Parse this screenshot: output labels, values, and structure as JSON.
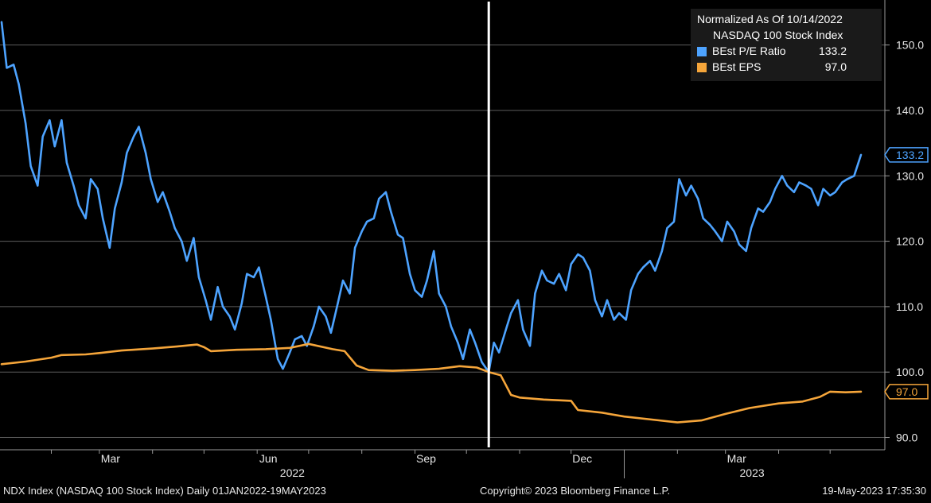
{
  "legend": {
    "header1": "Normalized As Of 10/14/2022",
    "header2": "NASDAQ 100 Stock Index",
    "items": [
      {
        "label": "BEst P/E Ratio",
        "value": "133.2",
        "color": "#4da3ff"
      },
      {
        "label": "BEst EPS",
        "value": "97.0",
        "color": "#f5a53a"
      }
    ]
  },
  "footer": {
    "left": "NDX Index (NASDAQ 100 Stock Index)  Daily 01JAN2022-19MAY2023",
    "center": "Copyright© 2023 Bloomberg Finance L.P.",
    "right": "19-May-2023 17:35:30"
  },
  "chart_data": {
    "type": "line",
    "xlim": [
      "2022-01-03",
      "2023-05-19"
    ],
    "ylim": [
      88,
      157
    ],
    "yticks": [
      90,
      100,
      110,
      120,
      130,
      140,
      150
    ],
    "ytick_labels": [
      "90.0",
      "100.0",
      "110.0",
      "120.0",
      "130.0",
      "140.0",
      "150.0"
    ],
    "month_ticks": [
      {
        "date": "2022-03-01",
        "label": "Mar"
      },
      {
        "date": "2022-06-01",
        "label": "Jun"
      },
      {
        "date": "2022-09-01",
        "label": "Sep"
      },
      {
        "date": "2022-12-01",
        "label": "Dec"
      },
      {
        "date": "2023-03-01",
        "label": "Mar"
      }
    ],
    "year_labels": [
      {
        "label": "2022",
        "date": "2022-06-15"
      },
      {
        "label": "2023",
        "date": "2023-03-10"
      }
    ],
    "year_boundary": "2023-01-01",
    "minor_ticks": [
      "2022-02-01",
      "2022-04-01",
      "2022-05-01",
      "2022-07-01",
      "2022-08-01",
      "2022-10-01",
      "2022-11-01",
      "2023-02-01",
      "2023-04-01",
      "2023-05-01"
    ],
    "vertical_marker": "2022-10-14",
    "grid": true,
    "legend_position": "top-right",
    "series": [
      {
        "name": "BEst P/E Ratio",
        "color": "#4da3ff",
        "last_value_label": "133.2",
        "points": [
          [
            "2022-01-03",
            153.5
          ],
          [
            "2022-01-06",
            146.5
          ],
          [
            "2022-01-10",
            147.0
          ],
          [
            "2022-01-13",
            144.0
          ],
          [
            "2022-01-17",
            138.0
          ],
          [
            "2022-01-20",
            131.5
          ],
          [
            "2022-01-24",
            128.5
          ],
          [
            "2022-01-27",
            136.0
          ],
          [
            "2022-01-31",
            138.5
          ],
          [
            "2022-02-03",
            134.5
          ],
          [
            "2022-02-07",
            138.5
          ],
          [
            "2022-02-10",
            132.0
          ],
          [
            "2022-02-14",
            128.5
          ],
          [
            "2022-02-17",
            125.5
          ],
          [
            "2022-02-21",
            123.5
          ],
          [
            "2022-02-24",
            129.5
          ],
          [
            "2022-02-28",
            128.0
          ],
          [
            "2022-03-03",
            123.5
          ],
          [
            "2022-03-07",
            119.0
          ],
          [
            "2022-03-10",
            125.0
          ],
          [
            "2022-03-14",
            129.0
          ],
          [
            "2022-03-17",
            133.5
          ],
          [
            "2022-03-21",
            136.0
          ],
          [
            "2022-03-24",
            137.5
          ],
          [
            "2022-03-28",
            133.5
          ],
          [
            "2022-03-31",
            129.5
          ],
          [
            "2022-04-04",
            126.0
          ],
          [
            "2022-04-07",
            127.5
          ],
          [
            "2022-04-11",
            124.5
          ],
          [
            "2022-04-14",
            122.0
          ],
          [
            "2022-04-18",
            120.0
          ],
          [
            "2022-04-21",
            117.0
          ],
          [
            "2022-04-25",
            120.5
          ],
          [
            "2022-04-28",
            114.5
          ],
          [
            "2022-05-02",
            111.0
          ],
          [
            "2022-05-05",
            108.0
          ],
          [
            "2022-05-09",
            113.0
          ],
          [
            "2022-05-12",
            110.0
          ],
          [
            "2022-05-16",
            108.5
          ],
          [
            "2022-05-19",
            106.5
          ],
          [
            "2022-05-23",
            110.5
          ],
          [
            "2022-05-26",
            115.0
          ],
          [
            "2022-05-30",
            114.5
          ],
          [
            "2022-06-02",
            116.0
          ],
          [
            "2022-06-06",
            111.5
          ],
          [
            "2022-06-09",
            108.0
          ],
          [
            "2022-06-13",
            102.0
          ],
          [
            "2022-06-16",
            100.5
          ],
          [
            "2022-06-20",
            103.0
          ],
          [
            "2022-06-23",
            105.0
          ],
          [
            "2022-06-27",
            105.5
          ],
          [
            "2022-06-30",
            104.0
          ],
          [
            "2022-07-04",
            107.0
          ],
          [
            "2022-07-07",
            110.0
          ],
          [
            "2022-07-11",
            108.5
          ],
          [
            "2022-07-14",
            106.0
          ],
          [
            "2022-07-18",
            110.5
          ],
          [
            "2022-07-21",
            114.0
          ],
          [
            "2022-07-25",
            112.0
          ],
          [
            "2022-07-28",
            119.0
          ],
          [
            "2022-08-01",
            121.5
          ],
          [
            "2022-08-04",
            123.0
          ],
          [
            "2022-08-08",
            123.5
          ],
          [
            "2022-08-11",
            126.5
          ],
          [
            "2022-08-15",
            127.5
          ],
          [
            "2022-08-18",
            124.5
          ],
          [
            "2022-08-22",
            121.0
          ],
          [
            "2022-08-25",
            120.5
          ],
          [
            "2022-08-29",
            115.0
          ],
          [
            "2022-09-01",
            112.5
          ],
          [
            "2022-09-05",
            111.5
          ],
          [
            "2022-09-08",
            114.0
          ],
          [
            "2022-09-12",
            118.5
          ],
          [
            "2022-09-15",
            112.0
          ],
          [
            "2022-09-19",
            110.0
          ],
          [
            "2022-09-22",
            107.0
          ],
          [
            "2022-09-26",
            104.5
          ],
          [
            "2022-09-29",
            102.0
          ],
          [
            "2022-10-03",
            106.5
          ],
          [
            "2022-10-06",
            104.5
          ],
          [
            "2022-10-10",
            101.5
          ],
          [
            "2022-10-14",
            100.0
          ],
          [
            "2022-10-17",
            104.5
          ],
          [
            "2022-10-20",
            103.0
          ],
          [
            "2022-10-24",
            106.5
          ],
          [
            "2022-10-27",
            109.0
          ],
          [
            "2022-10-31",
            111.0
          ],
          [
            "2022-11-03",
            106.5
          ],
          [
            "2022-11-07",
            104.0
          ],
          [
            "2022-11-10",
            112.0
          ],
          [
            "2022-11-14",
            115.5
          ],
          [
            "2022-11-17",
            114.0
          ],
          [
            "2022-11-21",
            113.5
          ],
          [
            "2022-11-24",
            115.0
          ],
          [
            "2022-11-28",
            112.5
          ],
          [
            "2022-12-01",
            116.5
          ],
          [
            "2022-12-05",
            118.0
          ],
          [
            "2022-12-08",
            117.5
          ],
          [
            "2022-12-12",
            115.5
          ],
          [
            "2022-12-15",
            111.0
          ],
          [
            "2022-12-19",
            108.5
          ],
          [
            "2022-12-22",
            111.0
          ],
          [
            "2022-12-26",
            108.0
          ],
          [
            "2022-12-29",
            109.0
          ],
          [
            "2023-01-02",
            108.0
          ],
          [
            "2023-01-05",
            112.5
          ],
          [
            "2023-01-09",
            115.0
          ],
          [
            "2023-01-12",
            116.0
          ],
          [
            "2023-01-16",
            117.0
          ],
          [
            "2023-01-19",
            115.5
          ],
          [
            "2023-01-23",
            118.5
          ],
          [
            "2023-01-26",
            122.0
          ],
          [
            "2023-01-30",
            123.0
          ],
          [
            "2023-02-02",
            129.5
          ],
          [
            "2023-02-06",
            127.0
          ],
          [
            "2023-02-09",
            128.5
          ],
          [
            "2023-02-13",
            126.5
          ],
          [
            "2023-02-16",
            123.5
          ],
          [
            "2023-02-20",
            122.5
          ],
          [
            "2023-02-23",
            121.5
          ],
          [
            "2023-02-27",
            120.0
          ],
          [
            "2023-03-02",
            123.0
          ],
          [
            "2023-03-06",
            121.5
          ],
          [
            "2023-03-09",
            119.5
          ],
          [
            "2023-03-13",
            118.5
          ],
          [
            "2023-03-16",
            122.0
          ],
          [
            "2023-03-20",
            125.0
          ],
          [
            "2023-03-23",
            124.5
          ],
          [
            "2023-03-27",
            126.0
          ],
          [
            "2023-03-30",
            128.0
          ],
          [
            "2023-04-03",
            130.0
          ],
          [
            "2023-04-06",
            128.5
          ],
          [
            "2023-04-10",
            127.5
          ],
          [
            "2023-04-13",
            129.0
          ],
          [
            "2023-04-17",
            128.5
          ],
          [
            "2023-04-20",
            128.0
          ],
          [
            "2023-04-24",
            125.5
          ],
          [
            "2023-04-27",
            128.0
          ],
          [
            "2023-05-01",
            127.0
          ],
          [
            "2023-05-04",
            127.5
          ],
          [
            "2023-05-08",
            129.0
          ],
          [
            "2023-05-11",
            129.5
          ],
          [
            "2023-05-15",
            130.0
          ],
          [
            "2023-05-19",
            133.2
          ]
        ]
      },
      {
        "name": "BEst EPS",
        "color": "#f5a53a",
        "last_value_label": "97.0",
        "points": [
          [
            "2022-01-03",
            101.2
          ],
          [
            "2022-01-17",
            101.6
          ],
          [
            "2022-02-01",
            102.2
          ],
          [
            "2022-02-07",
            102.6
          ],
          [
            "2022-02-21",
            102.7
          ],
          [
            "2022-03-01",
            102.9
          ],
          [
            "2022-03-14",
            103.3
          ],
          [
            "2022-04-01",
            103.6
          ],
          [
            "2022-04-15",
            103.9
          ],
          [
            "2022-04-27",
            104.2
          ],
          [
            "2022-05-01",
            103.8
          ],
          [
            "2022-05-05",
            103.2
          ],
          [
            "2022-05-20",
            103.4
          ],
          [
            "2022-06-06",
            103.5
          ],
          [
            "2022-06-20",
            103.7
          ],
          [
            "2022-07-01",
            104.3
          ],
          [
            "2022-07-15",
            103.5
          ],
          [
            "2022-07-22",
            103.2
          ],
          [
            "2022-07-29",
            101.0
          ],
          [
            "2022-08-05",
            100.3
          ],
          [
            "2022-08-19",
            100.2
          ],
          [
            "2022-09-01",
            100.3
          ],
          [
            "2022-09-15",
            100.5
          ],
          [
            "2022-09-27",
            100.9
          ],
          [
            "2022-10-07",
            100.7
          ],
          [
            "2022-10-14",
            100.0
          ],
          [
            "2022-10-21",
            99.5
          ],
          [
            "2022-10-27",
            96.5
          ],
          [
            "2022-11-01",
            96.1
          ],
          [
            "2022-11-15",
            95.8
          ],
          [
            "2022-12-01",
            95.6
          ],
          [
            "2022-12-05",
            94.2
          ],
          [
            "2022-12-19",
            93.8
          ],
          [
            "2023-01-01",
            93.2
          ],
          [
            "2023-01-15",
            92.8
          ],
          [
            "2023-02-01",
            92.3
          ],
          [
            "2023-02-15",
            92.6
          ],
          [
            "2023-03-01",
            93.6
          ],
          [
            "2023-03-15",
            94.5
          ],
          [
            "2023-04-01",
            95.2
          ],
          [
            "2023-04-15",
            95.5
          ],
          [
            "2023-04-25",
            96.2
          ],
          [
            "2023-05-01",
            97.0
          ],
          [
            "2023-05-10",
            96.9
          ],
          [
            "2023-05-19",
            97.0
          ]
        ]
      }
    ]
  }
}
